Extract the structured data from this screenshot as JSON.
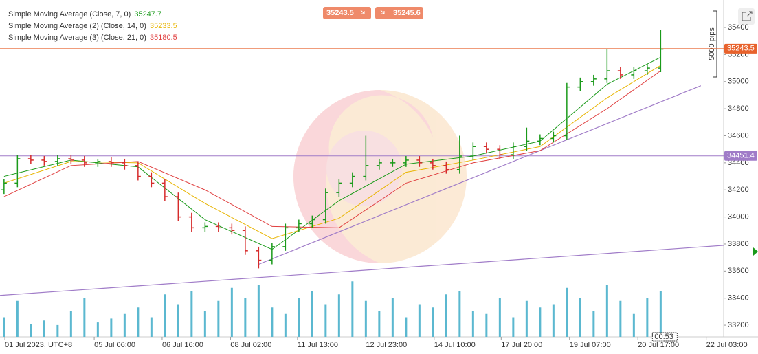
{
  "chart_data": {
    "type": "candlestick",
    "x": [
      0,
      1,
      2,
      3,
      4,
      5,
      6,
      7,
      8,
      9,
      10,
      11,
      12,
      13,
      14,
      15,
      16,
      17,
      18,
      19,
      20,
      21,
      22,
      23,
      24,
      25,
      26,
      27,
      28,
      29,
      30,
      31,
      32,
      33,
      34,
      35,
      36,
      37,
      38,
      39,
      40,
      41,
      42,
      43,
      44,
      45,
      46,
      47,
      48,
      49
    ],
    "open": [
      34200,
      34250,
      34430,
      34420,
      34410,
      34430,
      34420,
      34400,
      34410,
      34400,
      34380,
      34300,
      34250,
      34150,
      34000,
      33920,
      33930,
      33920,
      33900,
      33750,
      33680,
      33780,
      33920,
      33950,
      33980,
      34180,
      34250,
      34300,
      34380,
      34400,
      34400,
      34420,
      34400,
      34380,
      34350,
      34450,
      34520,
      34500,
      34460,
      34520,
      34560,
      34580,
      34600,
      34960,
      35000,
      35020,
      35080,
      35050,
      35080,
      35100
    ],
    "high": [
      34280,
      34460,
      34460,
      34450,
      34460,
      34460,
      34450,
      34430,
      34440,
      34430,
      34410,
      34330,
      34280,
      34180,
      34030,
      33960,
      33960,
      33950,
      33930,
      33780,
      33810,
      33950,
      33980,
      34010,
      34210,
      34280,
      34330,
      34600,
      34430,
      34430,
      34450,
      34450,
      34430,
      34410,
      34600,
      34550,
      34550,
      34530,
      34550,
      34660,
      34610,
      34630,
      34990,
      35030,
      35050,
      35240,
      35110,
      35110,
      35130,
      35380
    ],
    "low": [
      34170,
      34220,
      34390,
      34380,
      34380,
      34390,
      34370,
      34370,
      34370,
      34350,
      34270,
      34220,
      34120,
      33970,
      33890,
      33890,
      33890,
      33870,
      33720,
      33620,
      33650,
      33750,
      33890,
      33920,
      33950,
      34150,
      34220,
      34270,
      34350,
      34370,
      34370,
      34370,
      34350,
      34320,
      34320,
      34420,
      34470,
      34430,
      34430,
      34490,
      34530,
      34550,
      34570,
      34930,
      34970,
      34990,
      35020,
      35020,
      35050,
      35070
    ],
    "close": [
      34250,
      34430,
      34420,
      34410,
      34430,
      34420,
      34400,
      34410,
      34400,
      34380,
      34300,
      34250,
      34150,
      34000,
      33920,
      33930,
      33920,
      33900,
      33750,
      33680,
      33780,
      33920,
      33950,
      33980,
      34180,
      34250,
      34300,
      34380,
      34400,
      34400,
      34420,
      34400,
      34380,
      34350,
      34450,
      34520,
      34500,
      34460,
      34520,
      34560,
      34580,
      34600,
      34960,
      35000,
      35020,
      35080,
      35050,
      35080,
      35100,
      35240
    ],
    "up_color": "#1a9a1a",
    "down_color": "#d62b2b",
    "volume": [
      30,
      55,
      20,
      25,
      18,
      40,
      60,
      22,
      28,
      35,
      45,
      30,
      65,
      50,
      70,
      40,
      55,
      75,
      60,
      80,
      45,
      35,
      60,
      70,
      50,
      65,
      85,
      55,
      40,
      60,
      30,
      50,
      45,
      65,
      70,
      40,
      35,
      60,
      30,
      55,
      45,
      50,
      75,
      60,
      40,
      80,
      55,
      35,
      60,
      70
    ],
    "volume_color": "#5bb8d0",
    "indicators": [
      {
        "name": "Simple Moving Average (Close, 7, 0)",
        "last": 35247.7,
        "color": "#1a9a1a",
        "x": [
          0,
          5,
          10,
          15,
          20,
          25,
          30,
          35,
          40,
          45,
          49
        ],
        "values": [
          34300,
          34420,
          34370,
          33980,
          33760,
          34120,
          34390,
          34450,
          34560,
          34980,
          35180
        ]
      },
      {
        "name": "Simple Moving Average (2) (Close, 14, 0)",
        "last": 35233.5,
        "color": "#e8b400",
        "x": [
          0,
          5,
          10,
          15,
          20,
          25,
          30,
          35,
          40,
          45,
          49
        ],
        "values": [
          34250,
          34410,
          34400,
          34100,
          33840,
          33990,
          34330,
          34420,
          34520,
          34880,
          35120
        ]
      },
      {
        "name": "Simple Moving Average (3) (Close, 21, 0)",
        "last": 35180.5,
        "color": "#e04040",
        "x": [
          0,
          5,
          10,
          15,
          20,
          25,
          30,
          35,
          40,
          45,
          49
        ],
        "values": [
          34150,
          34380,
          34410,
          34200,
          33930,
          33920,
          34250,
          34400,
          34490,
          34800,
          35080
        ]
      }
    ],
    "hlines": [
      {
        "value": 35243.5,
        "color": "#e8622c"
      },
      {
        "value": 34451.4,
        "color": "#a07cc8"
      }
    ],
    "trendlines": [
      {
        "x": [
          19,
          52
        ],
        "y": [
          33650,
          34970
        ],
        "color": "#a07cc8"
      },
      {
        "x": [
          -0.3,
          53.7
        ],
        "y": [
          33420,
          33790
        ],
        "color": "#a07cc8"
      }
    ],
    "bid": 35243.5,
    "ask": 35245.6,
    "range_label": "5000 pips",
    "countdown": "00:53",
    "xlim": [
      -0.3,
      53.7
    ],
    "ylim": [
      33114,
      35578
    ],
    "yticks": [
      33200,
      33400,
      33600,
      33800,
      34000,
      34200,
      34400,
      34600,
      34800,
      35000,
      35200,
      35400
    ],
    "xticks": [
      {
        "value": 0.06,
        "label": "01 Jul 2023, UTC+8"
      },
      {
        "value": 6.73,
        "label": "05 Jul 06:00"
      },
      {
        "value": 11.8,
        "label": "06 Jul 16:00"
      },
      {
        "value": 16.9,
        "label": "08 Jul 02:00"
      },
      {
        "value": 21.9,
        "label": "11 Jul 13:00"
      },
      {
        "value": 27.0,
        "label": "12 Jul 23:00"
      },
      {
        "value": 32.1,
        "label": "14 Jul 10:00"
      },
      {
        "value": 37.1,
        "label": "17 Jul 20:00"
      },
      {
        "value": 42.2,
        "label": "19 Jul 07:00"
      },
      {
        "value": 47.3,
        "label": "20 Jul 17:00"
      },
      {
        "value": 52.4,
        "label": "22 Jul 03:00"
      }
    ]
  }
}
